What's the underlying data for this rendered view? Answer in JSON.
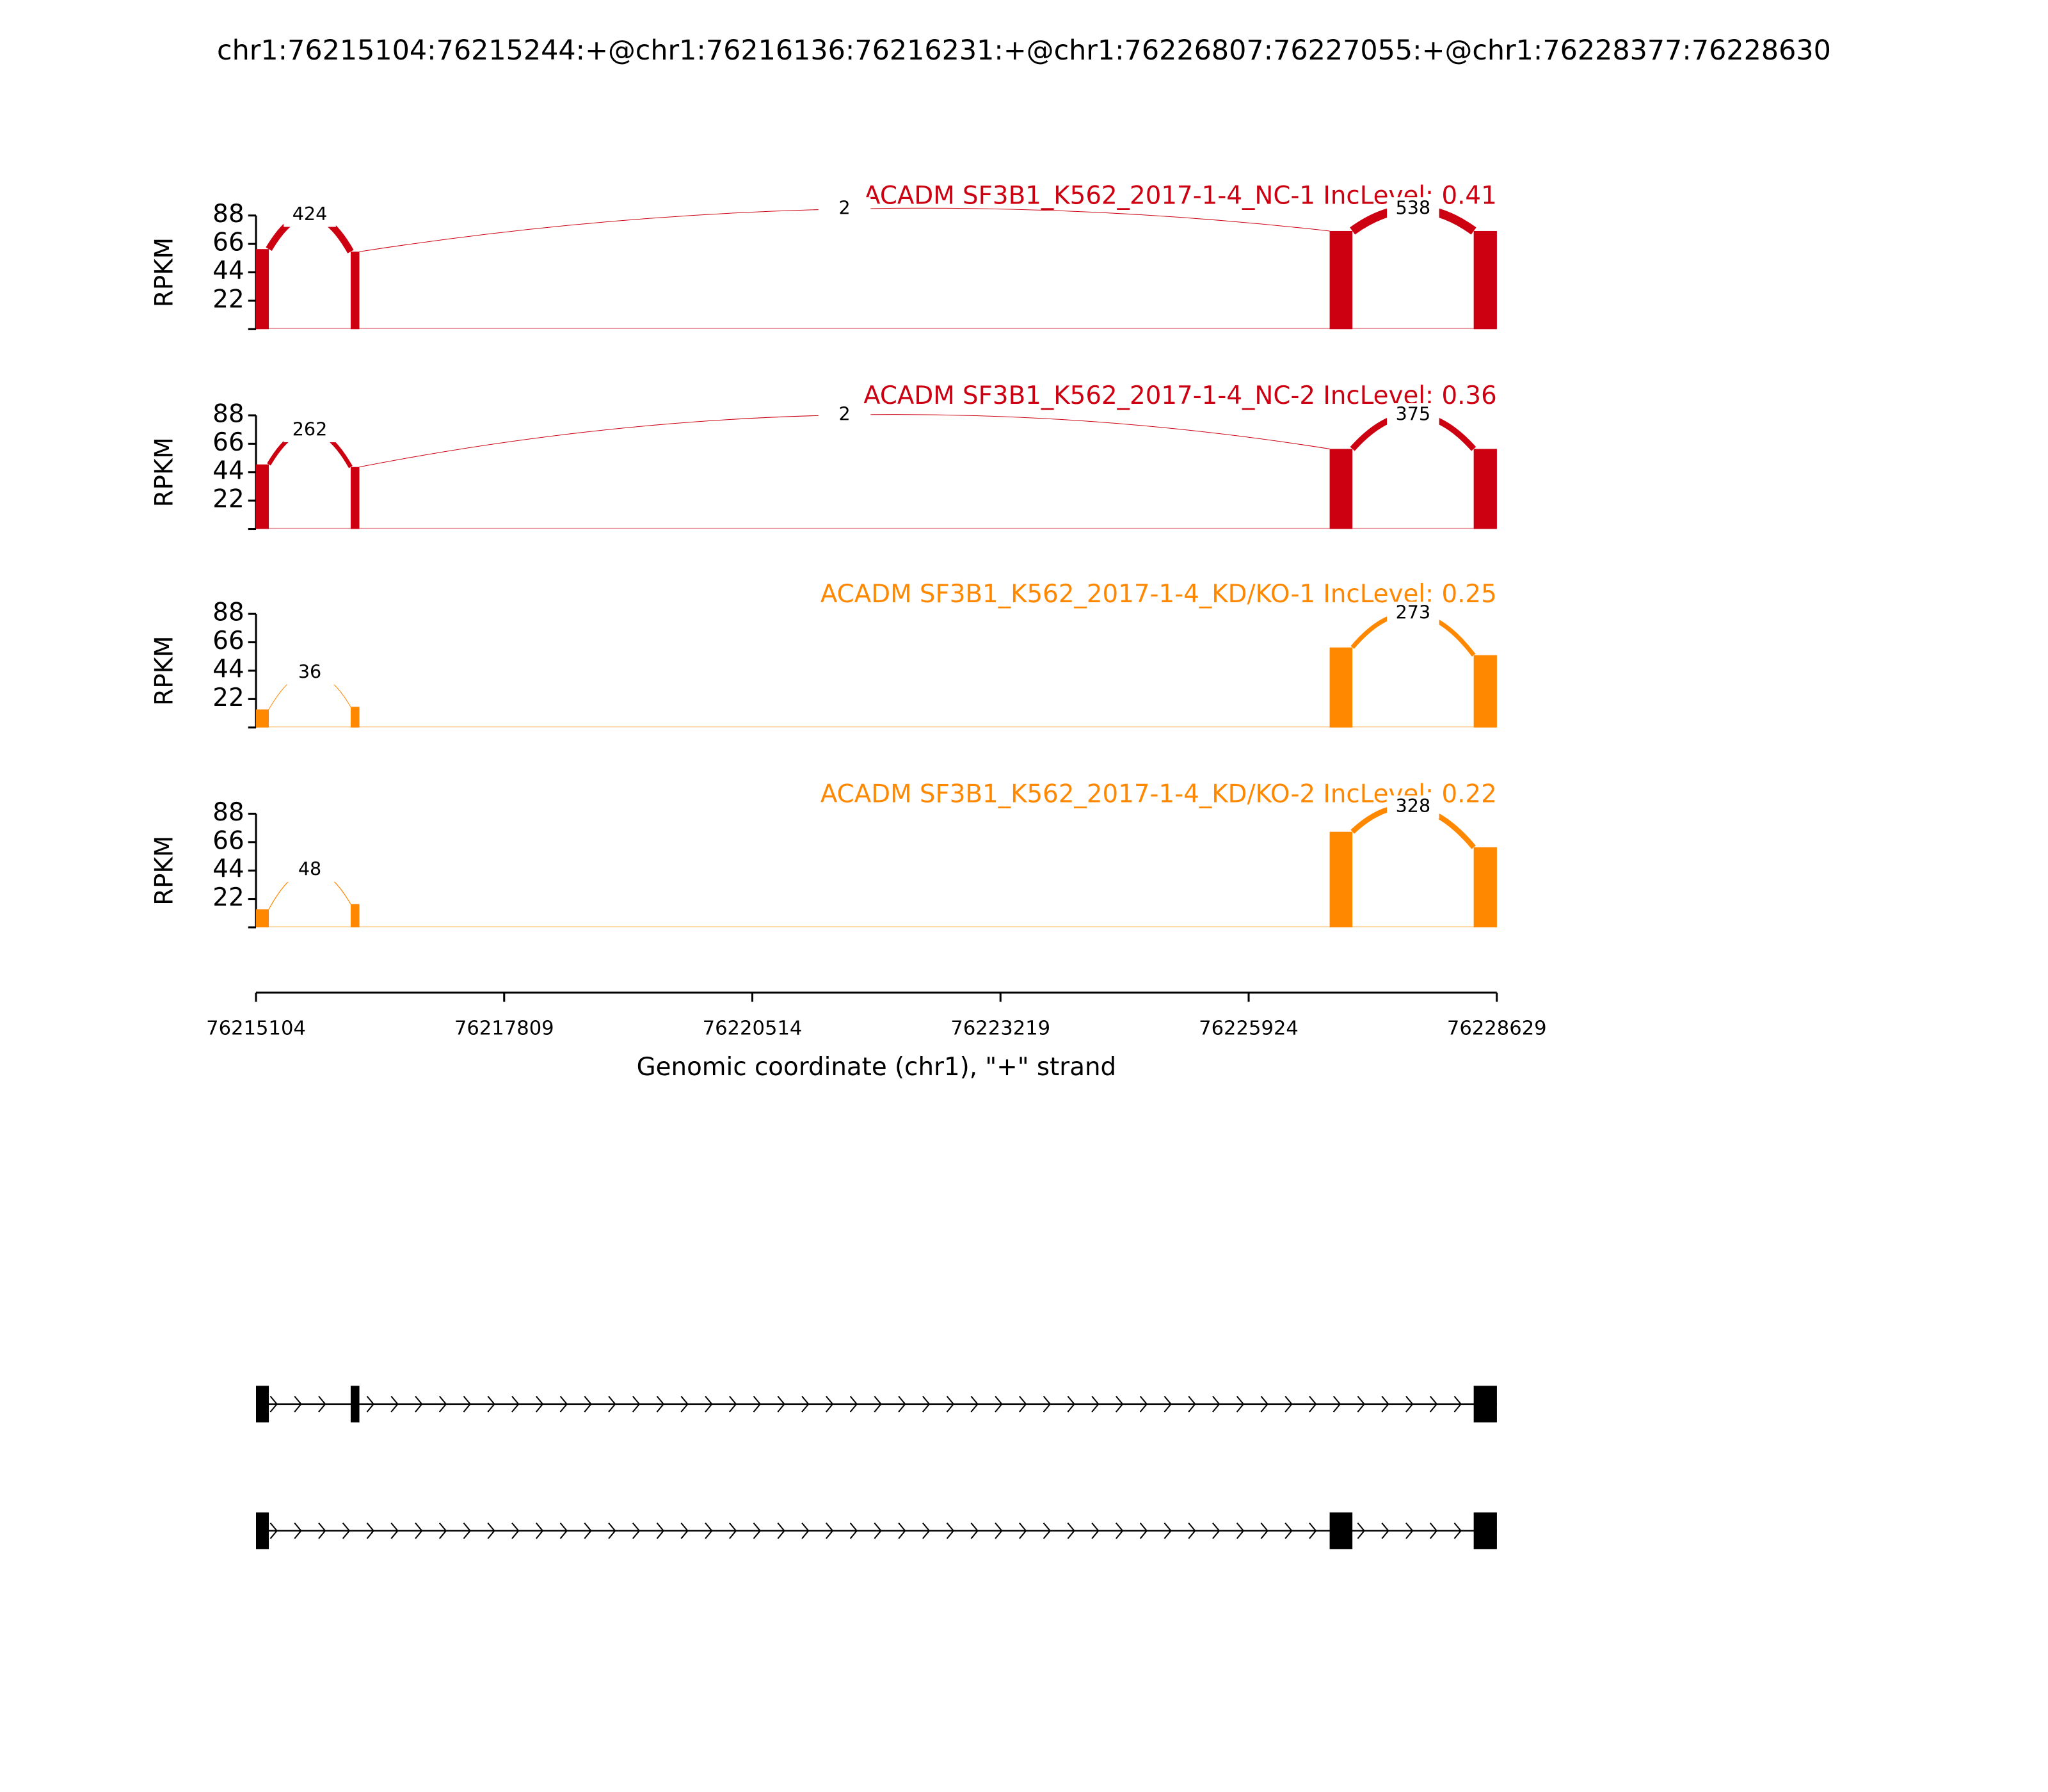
{
  "title": "chr1:76215104:76215244:+@chr1:76216136:76216231:+@chr1:76226807:76227055:+@chr1:76228377:76228630",
  "x_axis": {
    "label": "Genomic coordinate (chr1), \"+\" strand",
    "xlim": [
      76215104,
      76228629
    ],
    "xticks": [
      76215104,
      76217809,
      76220514,
      76223219,
      76225924,
      76228629
    ]
  },
  "chart_data": [
    {
      "type": "sashimi",
      "title": "ACADM SF3B1_K562_2017-1-4_NC-1 IncLevel: 0.41",
      "ylabel": "RPKM",
      "color": "#cc0011",
      "ylim": [
        0,
        88
      ],
      "yticks": [
        22,
        44,
        66,
        88
      ],
      "coverage": [
        {
          "start": 76215104,
          "end": 76215244,
          "value": 62
        },
        {
          "start": 76216136,
          "end": 76216231,
          "value": 60
        },
        {
          "start": 76226807,
          "end": 76227055,
          "value": 76
        },
        {
          "start": 76228377,
          "end": 76228630,
          "value": 76
        }
      ],
      "junctions": [
        {
          "start": 76215244,
          "end": 76216136,
          "count": 424
        },
        {
          "start": 76216231,
          "end": 76226807,
          "count": 2
        },
        {
          "start": 76227055,
          "end": 76228377,
          "count": 538
        }
      ]
    },
    {
      "type": "sashimi",
      "title": "ACADM SF3B1_K562_2017-1-4_NC-2 IncLevel: 0.36",
      "ylabel": "RPKM",
      "color": "#cc0011",
      "ylim": [
        0,
        88
      ],
      "yticks": [
        22,
        44,
        66,
        88
      ],
      "coverage": [
        {
          "start": 76215104,
          "end": 76215244,
          "value": 50
        },
        {
          "start": 76216136,
          "end": 76216231,
          "value": 48
        },
        {
          "start": 76226807,
          "end": 76227055,
          "value": 62
        },
        {
          "start": 76228377,
          "end": 76228630,
          "value": 62
        }
      ],
      "junctions": [
        {
          "start": 76215244,
          "end": 76216136,
          "count": 262
        },
        {
          "start": 76216231,
          "end": 76226807,
          "count": 2
        },
        {
          "start": 76227055,
          "end": 76228377,
          "count": 375
        }
      ]
    },
    {
      "type": "sashimi",
      "title": "ACADM SF3B1_K562_2017-1-4_KD/KO-1 IncLevel: 0.25",
      "ylabel": "RPKM",
      "color": "#ff8800",
      "ylim": [
        0,
        88
      ],
      "yticks": [
        22,
        44,
        66,
        88
      ],
      "coverage": [
        {
          "start": 76215104,
          "end": 76215244,
          "value": 14
        },
        {
          "start": 76216136,
          "end": 76216231,
          "value": 16
        },
        {
          "start": 76226807,
          "end": 76227055,
          "value": 62
        },
        {
          "start": 76228377,
          "end": 76228630,
          "value": 56
        }
      ],
      "junctions": [
        {
          "start": 76215244,
          "end": 76216136,
          "count": 36
        },
        {
          "start": 76227055,
          "end": 76228377,
          "count": 273
        }
      ]
    },
    {
      "type": "sashimi",
      "title": "ACADM SF3B1_K562_2017-1-4_KD/KO-2 IncLevel: 0.22",
      "ylabel": "RPKM",
      "color": "#ff8800",
      "ylim": [
        0,
        88
      ],
      "yticks": [
        22,
        44,
        66,
        88
      ],
      "coverage": [
        {
          "start": 76215104,
          "end": 76215244,
          "value": 14
        },
        {
          "start": 76216136,
          "end": 76216231,
          "value": 18
        },
        {
          "start": 76226807,
          "end": 76227055,
          "value": 74
        },
        {
          "start": 76228377,
          "end": 76228630,
          "value": 62
        }
      ],
      "junctions": [
        {
          "start": 76215244,
          "end": 76216136,
          "count": 48
        },
        {
          "start": 76227055,
          "end": 76228377,
          "count": 328
        }
      ]
    }
  ],
  "transcripts": [
    {
      "exons": [
        [
          76215104,
          76215244
        ],
        [
          76216136,
          76216231
        ],
        [
          76228377,
          76228630
        ]
      ]
    },
    {
      "exons": [
        [
          76215104,
          76215244
        ],
        [
          76226807,
          76227055
        ],
        [
          76228377,
          76228630
        ]
      ]
    }
  ]
}
